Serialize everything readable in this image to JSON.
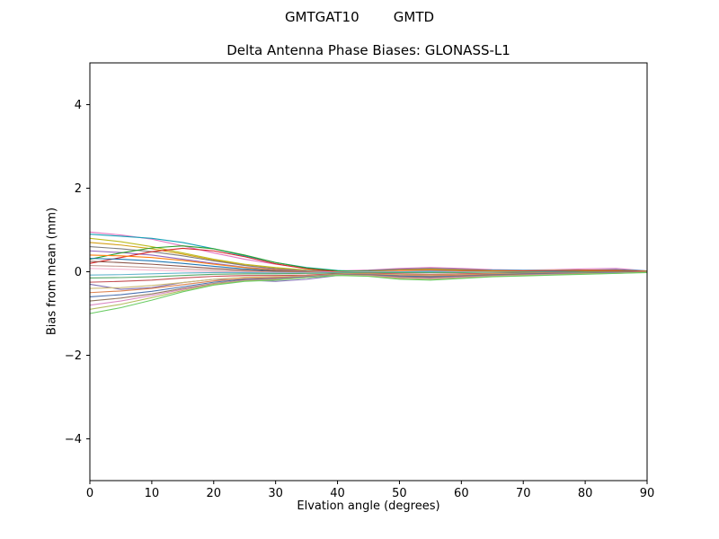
{
  "figure": {
    "suptitle": "GMTGAT10        GMTD"
  },
  "chart_data": {
    "type": "line",
    "title": "Delta Antenna Phase Biases: GLONASS-L1",
    "xlabel": "Elvation angle (degrees)",
    "ylabel": "Bias from mean (mm)",
    "xlim": [
      0,
      90
    ],
    "ylim": [
      -5,
      5
    ],
    "xticks": [
      0,
      10,
      20,
      30,
      40,
      50,
      60,
      70,
      80,
      90
    ],
    "yticks": [
      -4,
      -2,
      0,
      2,
      4
    ],
    "grid": false,
    "legend": "none",
    "x": [
      0,
      5,
      10,
      15,
      20,
      25,
      30,
      35,
      40,
      45,
      50,
      55,
      60,
      65,
      70,
      75,
      80,
      85,
      90
    ],
    "series": [
      [
        0.95,
        0.88,
        0.78,
        0.62,
        0.45,
        0.3,
        0.18,
        0.08,
        0.02,
        0.04,
        0.08,
        0.1,
        0.08,
        0.05,
        0.04,
        0.05,
        0.07,
        0.08,
        0.02
      ],
      [
        0.9,
        0.85,
        0.8,
        0.7,
        0.55,
        0.38,
        0.22,
        0.1,
        0.03,
        0.0,
        0.03,
        0.05,
        0.05,
        0.04,
        0.03,
        0.03,
        0.04,
        0.05,
        0.02
      ],
      [
        0.8,
        0.72,
        0.6,
        0.45,
        0.3,
        0.18,
        0.1,
        0.04,
        0.0,
        0.02,
        0.05,
        0.06,
        0.04,
        0.02,
        0.02,
        0.03,
        0.04,
        0.04,
        0.01
      ],
      [
        0.7,
        0.64,
        0.55,
        0.42,
        0.28,
        0.16,
        0.08,
        0.02,
        -0.01,
        0.01,
        0.04,
        0.05,
        0.03,
        0.01,
        0.01,
        0.02,
        0.03,
        0.03,
        0.01
      ],
      [
        0.6,
        0.55,
        0.48,
        0.38,
        0.26,
        0.15,
        0.07,
        0.02,
        0.0,
        0.03,
        0.06,
        0.08,
        0.06,
        0.03,
        0.02,
        0.02,
        0.03,
        0.04,
        0.01
      ],
      [
        0.5,
        0.46,
        0.4,
        0.3,
        0.2,
        0.11,
        0.05,
        0.01,
        -0.01,
        0.0,
        0.02,
        0.03,
        0.02,
        0.01,
        0.0,
        0.01,
        0.02,
        0.02,
        0.01
      ],
      [
        0.3,
        0.45,
        0.57,
        0.62,
        0.55,
        0.4,
        0.22,
        0.09,
        0.02,
        0.01,
        0.03,
        0.04,
        0.03,
        0.02,
        0.01,
        0.02,
        0.02,
        0.02,
        0.01
      ],
      [
        0.2,
        0.34,
        0.48,
        0.56,
        0.5,
        0.36,
        0.19,
        0.07,
        0.0,
        -0.02,
        0.0,
        0.02,
        0.03,
        0.02,
        0.02,
        0.02,
        0.03,
        0.03,
        0.01
      ],
      [
        0.4,
        0.38,
        0.34,
        0.27,
        0.18,
        0.1,
        0.04,
        0.0,
        -0.02,
        0.0,
        0.03,
        0.04,
        0.03,
        0.02,
        0.01,
        0.01,
        0.02,
        0.02,
        0.01
      ],
      [
        0.32,
        0.3,
        0.26,
        0.2,
        0.13,
        0.07,
        0.02,
        -0.01,
        -0.02,
        -0.01,
        0.01,
        0.02,
        0.01,
        0.0,
        0.0,
        0.01,
        0.01,
        0.01,
        0.0
      ],
      [
        0.25,
        0.22,
        0.18,
        0.13,
        0.08,
        0.04,
        0.01,
        -0.01,
        -0.02,
        -0.01,
        0.0,
        0.01,
        0.01,
        0.0,
        0.0,
        0.0,
        0.01,
        0.01,
        0.0
      ],
      [
        0.15,
        0.13,
        0.1,
        0.07,
        0.04,
        0.01,
        -0.01,
        -0.02,
        -0.02,
        -0.01,
        0.0,
        0.0,
        0.0,
        0.0,
        0.0,
        0.0,
        0.0,
        0.0,
        0.0
      ],
      [
        0.08,
        0.06,
        0.04,
        0.02,
        0.0,
        -0.01,
        -0.02,
        -0.02,
        -0.01,
        0.0,
        0.01,
        0.01,
        0.0,
        0.0,
        0.0,
        0.0,
        0.0,
        0.0,
        0.0
      ],
      [
        -0.08,
        -0.07,
        -0.05,
        -0.03,
        -0.02,
        -0.02,
        -0.03,
        -0.03,
        -0.02,
        -0.01,
        0.0,
        0.0,
        -0.01,
        -0.01,
        0.0,
        0.0,
        0.0,
        0.0,
        0.0
      ],
      [
        -0.15,
        -0.14,
        -0.12,
        -0.09,
        -0.06,
        -0.05,
        -0.05,
        -0.04,
        -0.03,
        -0.02,
        -0.02,
        -0.02,
        -0.02,
        -0.01,
        -0.01,
        -0.01,
        0.0,
        0.0,
        0.0
      ],
      [
        -0.25,
        -0.23,
        -0.2,
        -0.15,
        -0.11,
        -0.09,
        -0.09,
        -0.08,
        -0.05,
        -0.04,
        -0.05,
        -0.06,
        -0.05,
        -0.04,
        -0.03,
        -0.02,
        -0.02,
        -0.01,
        0.0
      ],
      [
        -0.3,
        -0.42,
        -0.38,
        -0.26,
        -0.18,
        -0.2,
        -0.23,
        -0.18,
        -0.09,
        -0.08,
        -0.12,
        -0.14,
        -0.12,
        -0.09,
        -0.07,
        -0.06,
        -0.05,
        -0.03,
        -0.01
      ],
      [
        -0.4,
        -0.38,
        -0.33,
        -0.26,
        -0.18,
        -0.13,
        -0.12,
        -0.1,
        -0.06,
        -0.05,
        -0.07,
        -0.08,
        -0.07,
        -0.05,
        -0.04,
        -0.03,
        -0.02,
        -0.02,
        -0.01
      ],
      [
        -0.5,
        -0.46,
        -0.4,
        -0.31,
        -0.22,
        -0.16,
        -0.14,
        -0.11,
        -0.07,
        -0.06,
        -0.09,
        -0.1,
        -0.08,
        -0.06,
        -0.05,
        -0.04,
        -0.03,
        -0.02,
        -0.01
      ],
      [
        -0.6,
        -0.55,
        -0.47,
        -0.36,
        -0.25,
        -0.18,
        -0.16,
        -0.12,
        -0.07,
        -0.07,
        -0.1,
        -0.12,
        -0.1,
        -0.07,
        -0.05,
        -0.04,
        -0.03,
        -0.02,
        -0.01
      ],
      [
        -0.7,
        -0.63,
        -0.53,
        -0.4,
        -0.28,
        -0.2,
        -0.17,
        -0.13,
        -0.08,
        -0.08,
        -0.12,
        -0.14,
        -0.11,
        -0.08,
        -0.06,
        -0.05,
        -0.04,
        -0.03,
        -0.01
      ],
      [
        -0.8,
        -0.7,
        -0.57,
        -0.42,
        -0.29,
        -0.21,
        -0.18,
        -0.13,
        -0.08,
        -0.09,
        -0.14,
        -0.16,
        -0.13,
        -0.1,
        -0.08,
        -0.06,
        -0.05,
        -0.03,
        -0.01
      ],
      [
        -0.9,
        -0.78,
        -0.62,
        -0.45,
        -0.3,
        -0.22,
        -0.19,
        -0.14,
        -0.08,
        -0.1,
        -0.16,
        -0.18,
        -0.15,
        -0.11,
        -0.09,
        -0.07,
        -0.05,
        -0.04,
        -0.01
      ],
      [
        -1.0,
        -0.86,
        -0.68,
        -0.48,
        -0.32,
        -0.23,
        -0.2,
        -0.14,
        -0.09,
        -0.11,
        -0.18,
        -0.2,
        -0.16,
        -0.12,
        -0.1,
        -0.08,
        -0.06,
        -0.04,
        -0.02
      ]
    ],
    "colors": [
      "#e377c2",
      "#17a2b8",
      "#bcbd22",
      "#d4a017",
      "#7f7f7f",
      "#9467bd",
      "#2ca02c",
      "#d62728",
      "#ff7f0e",
      "#1f77b4",
      "#8c564b",
      "#c49c94",
      "#f7b6d2",
      "#64b5cd",
      "#55a868",
      "#c44e52",
      "#8172b3",
      "#ccb974",
      "#dd8452",
      "#4c72b0",
      "#937860",
      "#da8bc3",
      "#b5bd61",
      "#6acc64"
    ]
  }
}
